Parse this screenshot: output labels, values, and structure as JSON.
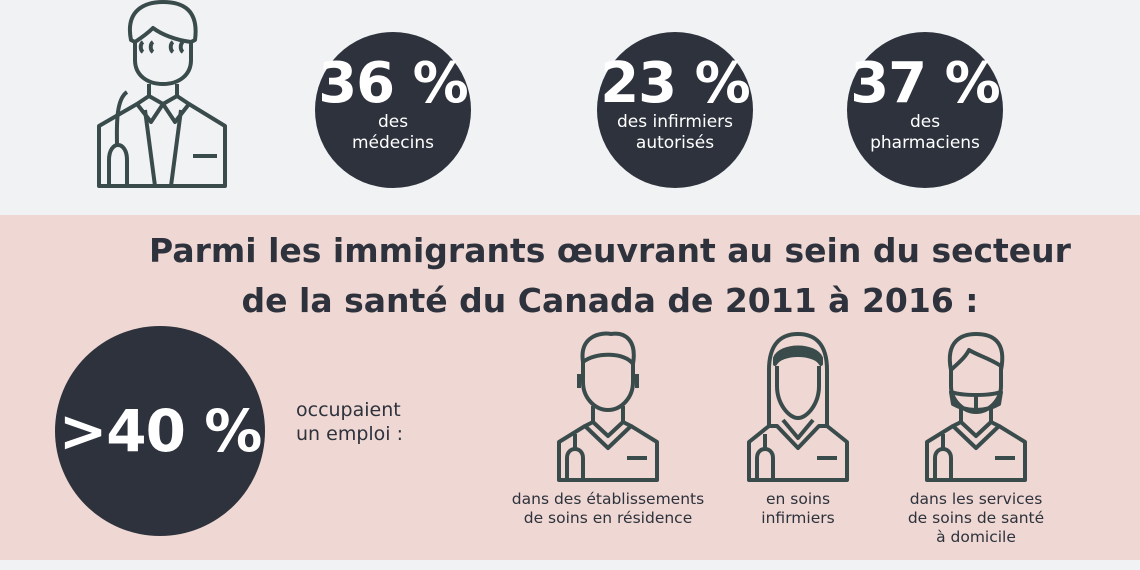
{
  "top_stats": [
    {
      "value": "36 %",
      "label_1": "des",
      "label_2": "médecins"
    },
    {
      "value": "23 %",
      "label_1": "des infirmiers",
      "label_2": "autorisés"
    },
    {
      "value": "37 %",
      "label_1": "des",
      "label_2": "pharmaciens"
    }
  ],
  "headline": {
    "line_1": "Parmi les immigrants œuvrant au sein du secteur",
    "line_2": "de la santé du Canada de 2011 à 2016 :"
  },
  "big_stat": {
    "value": ">40 %",
    "text_1": "occupaient",
    "text_2": "un emploi :"
  },
  "categories": [
    {
      "line_1": "dans des établissements",
      "line_2": "de soins en résidence",
      "line_3": ""
    },
    {
      "line_1": "en soins",
      "line_2": "infirmiers",
      "line_3": ""
    },
    {
      "line_1": "dans les services",
      "line_2": "de soins de santé",
      "line_3": "à domicile"
    }
  ],
  "colors": {
    "dark": "#2d323c",
    "icon": "#3a4b4c",
    "pink": "#efd7d3",
    "grey": "#f1f2f4"
  }
}
